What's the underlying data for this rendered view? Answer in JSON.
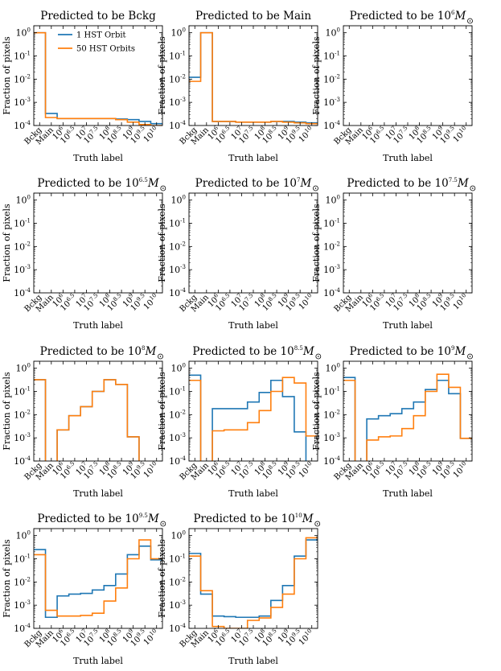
{
  "chart_data": {
    "type": "step-histogram-grid",
    "y_scale": "log",
    "ylim": [
      0.0001,
      2
    ],
    "ylabel": "Fraction of pixels",
    "xlabel": "Truth label",
    "categories": [
      {
        "base": "Bckg",
        "exp": ""
      },
      {
        "base": "Main",
        "exp": ""
      },
      {
        "base": "10",
        "exp": "6"
      },
      {
        "base": "10",
        "exp": "6.5"
      },
      {
        "base": "10",
        "exp": "7"
      },
      {
        "base": "10",
        "exp": "7.5"
      },
      {
        "base": "10",
        "exp": "8"
      },
      {
        "base": "10",
        "exp": "8.5"
      },
      {
        "base": "10",
        "exp": "9"
      },
      {
        "base": "10",
        "exp": "9.5"
      },
      {
        "base": "10",
        "exp": "10"
      }
    ],
    "y_ticks": [
      {
        "base": "10",
        "exp": "0"
      },
      {
        "base": "10",
        "exp": "-1"
      },
      {
        "base": "10",
        "exp": "-2"
      },
      {
        "base": "10",
        "exp": "-3"
      },
      {
        "base": "10",
        "exp": "-4"
      }
    ],
    "series_styles": [
      {
        "name": "1 HST Orbit",
        "color": "#1f77b4"
      },
      {
        "name": "50 HST Orbits",
        "color": "#ff7f0e"
      }
    ],
    "legend": {
      "location": "upper-center",
      "panel": 0
    },
    "panels": [
      {
        "title_prefix": "Predicted to be ",
        "title_base": "Bckg",
        "title_exp": "",
        "title_suffix": "",
        "series": [
          [
            1.0,
            0.00033,
            0.0002,
            0.0002,
            0.0002,
            0.0002,
            0.0002,
            0.00019,
            0.00018,
            0.00015,
            0.00012
          ],
          [
            1.0,
            0.00022,
            0.0002,
            0.0002,
            0.0002,
            0.0002,
            0.0002,
            0.00018,
            0.00014,
            0.00011,
            0.0001
          ]
        ]
      },
      {
        "title_prefix": "Predicted to be ",
        "title_base": "Main",
        "title_exp": "",
        "title_suffix": "",
        "series": [
          [
            0.012,
            1.0,
            0.00015,
            0.00015,
            0.00014,
            0.00014,
            0.00014,
            0.00015,
            0.00015,
            0.00014,
            0.00013
          ],
          [
            0.008,
            1.0,
            0.00015,
            0.00015,
            0.00014,
            0.00014,
            0.00014,
            0.00015,
            0.00014,
            0.00013,
            0.00012
          ]
        ]
      },
      {
        "title_prefix": "Predicted to be ",
        "title_base": "10",
        "title_exp": "6",
        "title_suffix": "M",
        "series": [
          [],
          []
        ]
      },
      {
        "title_prefix": "Predicted to be ",
        "title_base": "10",
        "title_exp": "6.5",
        "title_suffix": "M",
        "series": [
          [],
          []
        ]
      },
      {
        "title_prefix": "Predicted to be ",
        "title_base": "10",
        "title_exp": "7",
        "title_suffix": "M",
        "series": [
          [],
          []
        ]
      },
      {
        "title_prefix": "Predicted to be ",
        "title_base": "10",
        "title_exp": "7.5",
        "title_suffix": "M",
        "series": [
          [],
          []
        ]
      },
      {
        "title_prefix": "Predicted to be ",
        "title_base": "10",
        "title_exp": "8",
        "title_suffix": "M",
        "series": [
          [
            0.32,
            0,
            0.0022,
            0.009,
            0.022,
            0.1,
            0.32,
            0.2,
            0.0011,
            0,
            0
          ],
          [
            0.32,
            0,
            0.0022,
            0.009,
            0.022,
            0.1,
            0.32,
            0.2,
            0.0011,
            0,
            0
          ]
        ]
      },
      {
        "title_prefix": "Predicted to be ",
        "title_base": "10",
        "title_exp": "8.5",
        "title_suffix": "M",
        "series": [
          [
            0.5,
            0,
            0.018,
            0.018,
            0.018,
            0.035,
            0.09,
            0.3,
            0.06,
            0.0018,
            0
          ],
          [
            0.3,
            0,
            0.002,
            0.0022,
            0.0022,
            0.0045,
            0.015,
            0.1,
            0.4,
            0.23,
            0.0012
          ]
        ]
      },
      {
        "title_prefix": "Predicted to be ",
        "title_base": "10",
        "title_exp": "9",
        "title_suffix": "M",
        "series": [
          [
            0.4,
            0,
            0.0065,
            0.009,
            0.011,
            0.018,
            0.035,
            0.12,
            0.3,
            0.08,
            0.00095
          ],
          [
            0.3,
            0,
            0.0008,
            0.0011,
            0.0012,
            0.0025,
            0.009,
            0.1,
            0.55,
            0.15,
            0.00095
          ]
        ]
      },
      {
        "title_prefix": "Predicted to be ",
        "title_base": "10",
        "title_exp": "9.5",
        "title_suffix": "M",
        "series": [
          [
            0.25,
            0.0003,
            0.0025,
            0.003,
            0.0032,
            0.0045,
            0.007,
            0.022,
            0.15,
            0.35,
            0.09
          ],
          [
            0.15,
            0.0006,
            0.00034,
            0.00034,
            0.00036,
            0.00045,
            0.0015,
            0.0055,
            0.1,
            0.65,
            0.1
          ]
        ]
      },
      {
        "title_prefix": "Predicted to be ",
        "title_base": "10",
        "title_exp": "10",
        "title_suffix": "M",
        "series": [
          [
            0.17,
            0.003,
            0.00034,
            0.00032,
            0.0003,
            0.0003,
            0.00034,
            0.0016,
            0.007,
            0.13,
            0.65
          ],
          [
            0.13,
            0.0042,
            0.00012,
            0.0001,
            0.0001,
            0.00022,
            0.00028,
            0.0008,
            0.003,
            0.1,
            0.8
          ]
        ]
      }
    ]
  }
}
